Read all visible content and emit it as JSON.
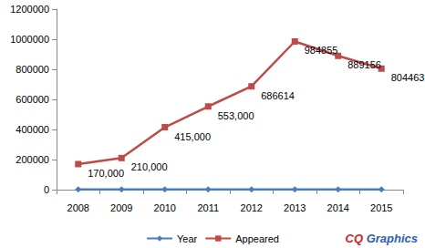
{
  "chart_data": {
    "type": "line",
    "categories": [
      "2008",
      "2009",
      "2010",
      "2011",
      "2012",
      "2013",
      "2014",
      "2015"
    ],
    "series": [
      {
        "name": "Year",
        "color": "#4a7ebb",
        "marker": "diamond",
        "values": [
          2008,
          2009,
          2010,
          2011,
          2012,
          2013,
          2014,
          2015
        ]
      },
      {
        "name": "Appeared",
        "color": "#be4b48",
        "marker": "square",
        "data_labels": true,
        "values": [
          170000,
          210000,
          415000,
          553000,
          686614,
          984855,
          889156,
          804463
        ],
        "value_labels": [
          "170,000",
          "210,000",
          "415,000",
          "553,000",
          "686614",
          "984855",
          "889156",
          "804463"
        ]
      }
    ],
    "ylim": [
      0,
      1200000
    ],
    "yticks": [
      0,
      200000,
      400000,
      600000,
      800000,
      1000000,
      1200000
    ],
    "grid": false,
    "legend": "bottom",
    "annotations": [
      "CQ Graphics"
    ]
  }
}
